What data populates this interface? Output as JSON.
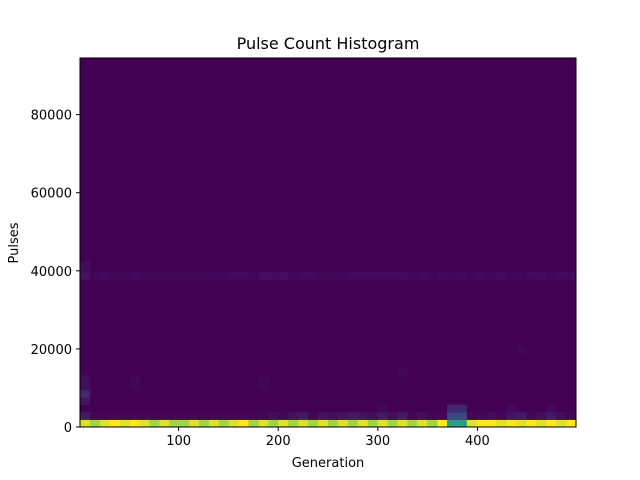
{
  "chart_data": {
    "type": "heatmap",
    "title": "Pulse Count Histogram",
    "xlabel": "Generation",
    "ylabel": "Pulses",
    "xlim": [
      1,
      499
    ],
    "ylim": [
      0,
      94500
    ],
    "xticks": [
      100,
      200,
      300,
      400
    ],
    "yticks": [
      0,
      20000,
      40000,
      60000,
      80000
    ],
    "ytick_labels": [
      "0",
      "20000",
      "40000",
      "60000",
      "80000"
    ],
    "x_bins": 50,
    "y_bin_width": 1890,
    "colormap": "viridis",
    "grid": false,
    "legend": "none",
    "rows": [
      {
        "y_range": [
          0,
          1890
        ],
        "values": [
          0.95,
          0.85,
          0.95,
          1.0,
          0.95,
          1.0,
          0.95,
          0.85,
          0.95,
          0.85,
          0.85,
          0.95,
          0.85,
          0.95,
          0.85,
          0.95,
          1.0,
          0.85,
          0.95,
          0.85,
          0.95,
          0.85,
          0.95,
          0.85,
          0.95,
          0.85,
          0.95,
          0.85,
          0.95,
          0.85,
          0.95,
          0.85,
          0.95,
          0.85,
          0.95,
          0.85,
          1.0,
          0.55,
          0.55,
          0.95,
          1.0,
          1.0,
          0.95,
          1.0,
          0.95,
          1.0,
          0.95,
          1.0,
          0.95,
          1.0
        ]
      },
      {
        "y_range": [
          1890,
          3780
        ],
        "values": [
          0.08,
          0.02,
          0.02,
          0.02,
          0.02,
          0.02,
          0.02,
          0.02,
          0.02,
          0.02,
          0.02,
          0.02,
          0.02,
          0.02,
          0.02,
          0.02,
          0.02,
          0.02,
          0.02,
          0.04,
          0.02,
          0.06,
          0.08,
          0.02,
          0.06,
          0.04,
          0.06,
          0.08,
          0.06,
          0.04,
          0.08,
          0.04,
          0.08,
          0.02,
          0.04,
          0.02,
          0.02,
          0.22,
          0.22,
          0.02,
          0.02,
          0.04,
          0.02,
          0.06,
          0.08,
          0.02,
          0.04,
          0.08,
          0.04,
          0.02
        ]
      },
      {
        "y_range": [
          3780,
          5670
        ],
        "values": [
          0.0,
          0.0,
          0.0,
          0.0,
          0.0,
          0.0,
          0.0,
          0.0,
          0.0,
          0.0,
          0.0,
          0.0,
          0.0,
          0.0,
          0.0,
          0.0,
          0.0,
          0.0,
          0.0,
          0.0,
          0.0,
          0.0,
          0.0,
          0.0,
          0.0,
          0.0,
          0.0,
          0.0,
          0.0,
          0.0,
          0.02,
          0.0,
          0.0,
          0.0,
          0.0,
          0.0,
          0.0,
          0.12,
          0.12,
          0.0,
          0.0,
          0.0,
          0.0,
          0.03,
          0.0,
          0.0,
          0.0,
          0.03,
          0.0,
          0.0
        ]
      },
      {
        "y_range": [
          5670,
          7560
        ],
        "values": [
          0.06,
          0.0,
          0.0,
          0.0,
          0.0,
          0.0,
          0.0,
          0.0,
          0.0,
          0.0,
          0.0,
          0.0,
          0.0,
          0.0,
          0.0,
          0.0,
          0.0,
          0.0,
          0.0,
          0.0,
          0.0,
          0.0,
          0.0,
          0.0,
          0.0,
          0.0,
          0.0,
          0.0,
          0.0,
          0.0,
          0.0,
          0.0,
          0.0,
          0.0,
          0.0,
          0.0,
          0.0,
          0.0,
          0.0,
          0.0,
          0.0,
          0.0,
          0.0,
          0.0,
          0.0,
          0.0,
          0.0,
          0.0,
          0.0,
          0.0
        ]
      },
      {
        "y_range": [
          7560,
          9450
        ],
        "values": [
          0.12,
          0.0,
          0.0,
          0.0,
          0.0,
          0.0,
          0.0,
          0.0,
          0.0,
          0.0,
          0.0,
          0.0,
          0.0,
          0.0,
          0.0,
          0.0,
          0.0,
          0.0,
          0.0,
          0.0,
          0.0,
          0.0,
          0.0,
          0.0,
          0.0,
          0.0,
          0.0,
          0.0,
          0.0,
          0.0,
          0.0,
          0.0,
          0.0,
          0.0,
          0.0,
          0.0,
          0.0,
          0.0,
          0.0,
          0.0,
          0.0,
          0.0,
          0.0,
          0.0,
          0.0,
          0.0,
          0.0,
          0.0,
          0.0,
          0.0
        ]
      },
      {
        "y_range": [
          9450,
          13230
        ],
        "values": [
          0.04,
          0.0,
          0.0,
          0.0,
          0.0,
          0.02,
          0.0,
          0.0,
          0.0,
          0.0,
          0.0,
          0.0,
          0.0,
          0.0,
          0.0,
          0.0,
          0.0,
          0.0,
          0.02,
          0.0,
          0.0,
          0.0,
          0.0,
          0.0,
          0.0,
          0.0,
          0.0,
          0.0,
          0.0,
          0.0,
          0.0,
          0.0,
          0.0,
          0.0,
          0.0,
          0.0,
          0.0,
          0.0,
          0.0,
          0.0,
          0.0,
          0.0,
          0.0,
          0.0,
          0.0,
          0.0,
          0.0,
          0.0,
          0.0,
          0.0
        ]
      },
      {
        "y_range": [
          13230,
          15120
        ],
        "values": [
          0.0,
          0.0,
          0.0,
          0.0,
          0.0,
          0.0,
          0.0,
          0.0,
          0.0,
          0.0,
          0.0,
          0.0,
          0.0,
          0.0,
          0.0,
          0.0,
          0.0,
          0.0,
          0.0,
          0.0,
          0.0,
          0.0,
          0.0,
          0.0,
          0.0,
          0.0,
          0.0,
          0.0,
          0.0,
          0.0,
          0.0,
          0.0,
          0.02,
          0.0,
          0.0,
          0.0,
          0.0,
          0.0,
          0.0,
          0.0,
          0.0,
          0.0,
          0.0,
          0.0,
          0.0,
          0.0,
          0.0,
          0.0,
          0.0,
          0.0
        ]
      },
      {
        "y_range": [
          18900,
          20790
        ],
        "values": [
          0.0,
          0.0,
          0.0,
          0.0,
          0.0,
          0.0,
          0.0,
          0.0,
          0.0,
          0.0,
          0.0,
          0.0,
          0.0,
          0.0,
          0.0,
          0.0,
          0.0,
          0.0,
          0.0,
          0.0,
          0.0,
          0.0,
          0.0,
          0.0,
          0.0,
          0.0,
          0.0,
          0.0,
          0.0,
          0.0,
          0.0,
          0.0,
          0.0,
          0.0,
          0.0,
          0.0,
          0.0,
          0.0,
          0.0,
          0.0,
          0.0,
          0.0,
          0.0,
          0.0,
          0.02,
          0.0,
          0.0,
          0.0,
          0.0,
          0.0
        ]
      },
      {
        "y_range": [
          37800,
          39690
        ],
        "values": [
          0.06,
          0.02,
          0.03,
          0.02,
          0.02,
          0.03,
          0.02,
          0.02,
          0.02,
          0.02,
          0.02,
          0.02,
          0.02,
          0.02,
          0.02,
          0.03,
          0.03,
          0.02,
          0.04,
          0.04,
          0.04,
          0.02,
          0.03,
          0.03,
          0.02,
          0.02,
          0.02,
          0.03,
          0.03,
          0.03,
          0.03,
          0.03,
          0.03,
          0.02,
          0.03,
          0.02,
          0.03,
          0.02,
          0.03,
          0.02,
          0.03,
          0.02,
          0.03,
          0.02,
          0.02,
          0.03,
          0.04,
          0.02,
          0.03,
          0.03
        ]
      },
      {
        "y_range": [
          39690,
          42525
        ],
        "values": [
          0.03,
          0.0,
          0.0,
          0.0,
          0.0,
          0.0,
          0.0,
          0.0,
          0.0,
          0.0,
          0.0,
          0.0,
          0.0,
          0.0,
          0.0,
          0.0,
          0.0,
          0.0,
          0.0,
          0.0,
          0.0,
          0.0,
          0.0,
          0.0,
          0.0,
          0.0,
          0.0,
          0.0,
          0.0,
          0.0,
          0.0,
          0.0,
          0.0,
          0.0,
          0.0,
          0.0,
          0.0,
          0.0,
          0.0,
          0.0,
          0.0,
          0.0,
          0.0,
          0.0,
          0.0,
          0.0,
          0.0,
          0.0,
          0.0,
          0.0
        ]
      }
    ]
  }
}
